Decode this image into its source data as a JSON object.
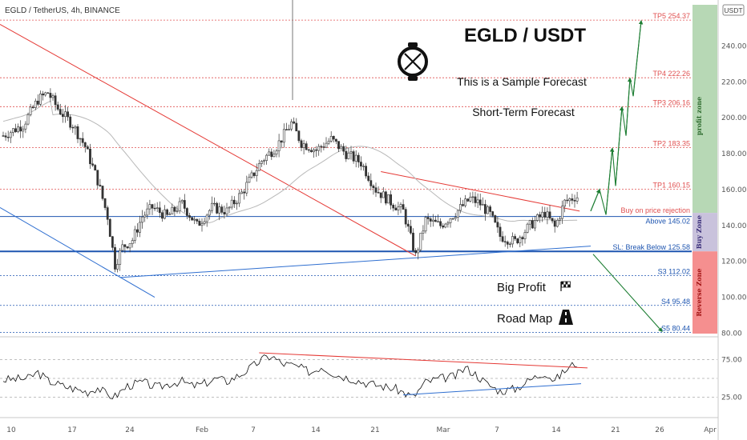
{
  "header": {
    "ticker": "EGLD / TetherUS, 4h, BINANCE",
    "currency_badge": "USDT"
  },
  "annotations": {
    "title": "EGLD / USDT",
    "line1": "This is a Sample Forecast",
    "line2": "Short-Term Forecast",
    "big_profit": "Big Profit",
    "road_map": "Road Map",
    "logo_icon": "egld-logo-icon",
    "flag_icon": "checkered-flag-icon",
    "road_icon": "road-icon"
  },
  "zones": {
    "profit": "profit zone",
    "buy": "Buy Zone",
    "reverse": "Reverse Zone"
  },
  "colors": {
    "profit_zone": "#b7d8b5",
    "buy_zone": "#c9c2dc",
    "reverse_zone": "#f58f8f",
    "tp_line": "#e05050",
    "support_line": "#1e55b0",
    "trend_red": "#e53935",
    "trend_blue": "#2f6fd0",
    "arrow_green": "#1e7e34",
    "up_candle": "#333333",
    "down_candle": "#333333"
  },
  "chart_data": [
    {
      "type": "candlestick",
      "title": "",
      "timeframe": "4h",
      "yscale": "linear",
      "ylim": [
        78,
        262
      ],
      "y_ticks": [
        80,
        100,
        120,
        140,
        160,
        180,
        200,
        220,
        240
      ],
      "y_tick_labels": [
        "80.00",
        "100.00",
        "120.00",
        "140.00",
        "160.00",
        "180.00",
        "200.00",
        "220.00",
        "240.00"
      ],
      "x_tick_labels": [
        "10",
        "17",
        "24",
        "Feb",
        "7",
        "14",
        "21",
        "Mar",
        "7",
        "14",
        "21",
        "26",
        "Apr"
      ],
      "levels": [
        {
          "label": "TP5 254.37",
          "value": 254.37,
          "kind": "tp"
        },
        {
          "label": "TP4 222.26",
          "value": 222.26,
          "kind": "tp"
        },
        {
          "label": "TP3 206.16",
          "value": 206.16,
          "kind": "tp"
        },
        {
          "label": "TP2 183.35",
          "value": 183.35,
          "kind": "tp"
        },
        {
          "label": "TP1 160.15",
          "value": 160.15,
          "kind": "tp"
        },
        {
          "label": "Buy on price rejection",
          "value": 148.3,
          "kind": "note"
        },
        {
          "label": "Above 145.02",
          "value": 145.02,
          "kind": "buy"
        },
        {
          "label": "SL: Break Below 125.58",
          "value": 125.58,
          "kind": "sl"
        },
        {
          "label": "S3 112.02",
          "value": 112.02,
          "kind": "support"
        },
        {
          "label": "S4 95.48",
          "value": 95.48,
          "kind": "support"
        },
        {
          "label": "S5 80.44",
          "value": 80.44,
          "kind": "support"
        }
      ],
      "price_path": [
        [
          0,
          190
        ],
        [
          8,
          196
        ],
        [
          14,
          210
        ],
        [
          18,
          214
        ],
        [
          22,
          205
        ],
        [
          28,
          196
        ],
        [
          33,
          184
        ],
        [
          38,
          165
        ],
        [
          42,
          145
        ],
        [
          45,
          118
        ],
        [
          48,
          128
        ],
        [
          52,
          132
        ],
        [
          56,
          145
        ],
        [
          60,
          150
        ],
        [
          66,
          145
        ],
        [
          72,
          152
        ],
        [
          78,
          140
        ],
        [
          84,
          150
        ],
        [
          90,
          148
        ],
        [
          96,
          158
        ],
        [
          104,
          176
        ],
        [
          110,
          184
        ],
        [
          116,
          197
        ],
        [
          120,
          186
        ],
        [
          126,
          182
        ],
        [
          132,
          188
        ],
        [
          138,
          180
        ],
        [
          144,
          175
        ],
        [
          150,
          160
        ],
        [
          156,
          153
        ],
        [
          161,
          148
        ],
        [
          166,
          123
        ],
        [
          170,
          143
        ],
        [
          176,
          140
        ],
        [
          182,
          147
        ],
        [
          188,
          155
        ],
        [
          192,
          152
        ],
        [
          196,
          146
        ],
        [
          200,
          134
        ],
        [
          206,
          131
        ],
        [
          212,
          140
        ],
        [
          218,
          147
        ],
        [
          222,
          139
        ],
        [
          226,
          153
        ],
        [
          230,
          156
        ]
      ]
    },
    {
      "type": "line",
      "title": "",
      "ylim": [
        0,
        100
      ],
      "y_ticks": [
        25,
        75
      ],
      "y_tick_labels": [
        "25.00",
        "75.00"
      ],
      "series": [
        {
          "values_path": [
            [
              0,
              48
            ],
            [
              10,
              50
            ],
            [
              14,
              58
            ],
            [
              18,
              47
            ],
            [
              24,
              40
            ],
            [
              30,
              35
            ],
            [
              34,
              32
            ],
            [
              38,
              38
            ],
            [
              42,
              28
            ],
            [
              45,
              26
            ],
            [
              50,
              40
            ],
            [
              56,
              45
            ],
            [
              62,
              38
            ],
            [
              68,
              44
            ],
            [
              72,
              46
            ],
            [
              76,
              40
            ],
            [
              80,
              42
            ],
            [
              86,
              50
            ],
            [
              90,
              46
            ],
            [
              96,
              56
            ],
            [
              100,
              65
            ],
            [
              104,
              75
            ],
            [
              108,
              80
            ],
            [
              112,
              70
            ],
            [
              118,
              66
            ],
            [
              124,
              58
            ],
            [
              128,
              66
            ],
            [
              134,
              55
            ],
            [
              140,
              50
            ],
            [
              146,
              44
            ],
            [
              152,
              40
            ],
            [
              158,
              36
            ],
            [
              162,
              30
            ],
            [
              165,
              25
            ],
            [
              170,
              45
            ],
            [
              176,
              50
            ],
            [
              182,
              53
            ],
            [
              186,
              64
            ],
            [
              190,
              56
            ],
            [
              195,
              42
            ],
            [
              200,
              33
            ],
            [
              206,
              36
            ],
            [
              212,
              48
            ],
            [
              218,
              58
            ],
            [
              222,
              47
            ],
            [
              226,
              60
            ],
            [
              230,
              70
            ]
          ]
        }
      ]
    }
  ]
}
